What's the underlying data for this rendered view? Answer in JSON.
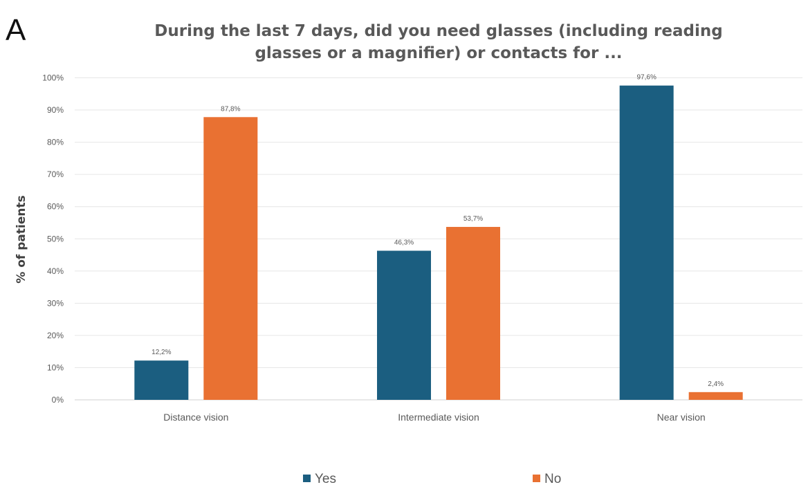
{
  "panel_label": "A",
  "chart_data": {
    "type": "bar",
    "title_lines": [
      "During the last 7 days, did you need glasses (including reading",
      "glasses or a magnifier) or contacts for ..."
    ],
    "ylabel": "% of patients",
    "categories": [
      "Distance vision",
      "Intermediate vision",
      "Near vision"
    ],
    "series": [
      {
        "name": "Yes",
        "color": "#1b5e80",
        "values": [
          12.2,
          46.3,
          97.6
        ],
        "labels": [
          "12,2%",
          "46,3%",
          "97,6%"
        ]
      },
      {
        "name": "No",
        "color": "#e97132",
        "values": [
          87.8,
          53.7,
          2.4
        ],
        "labels": [
          "87,8%",
          "53,7%",
          "2,4%"
        ]
      }
    ],
    "ylim": [
      0,
      100
    ],
    "yticks": [
      0,
      10,
      20,
      30,
      40,
      50,
      60,
      70,
      80,
      90,
      100
    ],
    "ytick_labels": [
      "0%",
      "10%",
      "20%",
      "30%",
      "40%",
      "50%",
      "60%",
      "70%",
      "80%",
      "90%",
      "100%"
    ],
    "grid": true,
    "legend_position": "bottom"
  }
}
